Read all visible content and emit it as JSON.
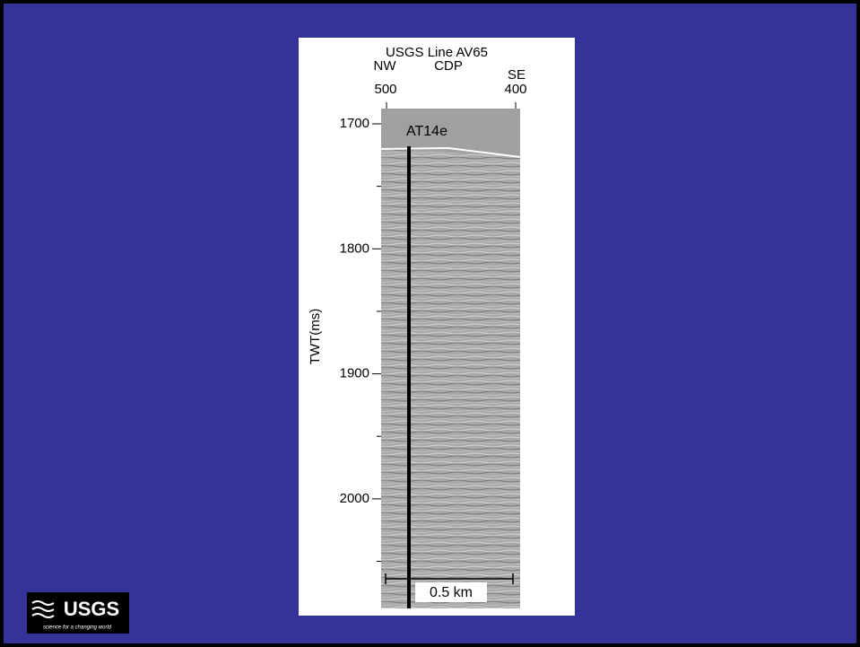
{
  "slide": {
    "figure": {
      "title": "USGS Line AV65",
      "x_axis": {
        "left": "NW",
        "center": "CDP",
        "right": "SE",
        "left_value": "500",
        "right_value": "400"
      },
      "y_axis": {
        "label": "TWT(ms)",
        "ticks": [
          "1700",
          "1800",
          "1900",
          "2000"
        ]
      },
      "well_label": "AT14e",
      "scale_bar": "0.5 km"
    },
    "logo": {
      "name": "USGS",
      "tagline": "science for a changing world"
    }
  }
}
